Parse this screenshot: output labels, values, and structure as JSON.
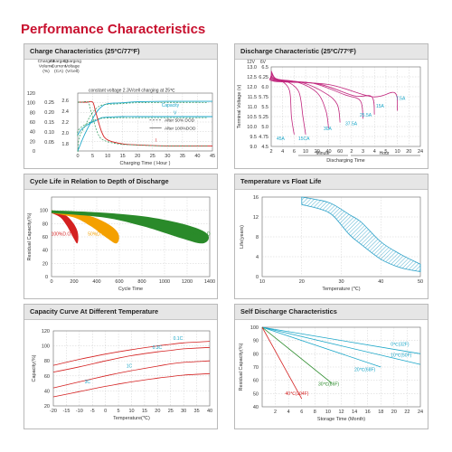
{
  "page": {
    "title": "Performance Characteristics"
  },
  "colors": {
    "title_red": "#c8102e",
    "magenta": "#c0247c",
    "cyan": "#1aa6c8",
    "red": "#d42020",
    "green": "#2a8a2a",
    "orange": "#f4a000",
    "hatch": "#2aa0c8"
  },
  "chart_data": [
    {
      "id": "charge",
      "type": "line",
      "title": "Charge Characteristics (25ºC/77ºF)",
      "xlabel": "Charging Time ( Hour )",
      "header_labels": [
        "Charged Volume (%)",
        "Charging Current (CA)",
        "Charging Voltage (V/cell)"
      ],
      "x_ticks": [
        "0",
        "5",
        "10",
        "15",
        "20",
        "25",
        "30",
        "35",
        "40",
        "45"
      ],
      "y_ticks_volume": [
        "0",
        "20",
        "40",
        "60",
        "80",
        "100",
        "120"
      ],
      "y_ticks_current": [
        "0.05",
        "0.10",
        "0.15",
        "0.20",
        "0.25"
      ],
      "y_ticks_voltage": [
        "1.8",
        "2.0",
        "2.2",
        "2.4",
        "2.6"
      ],
      "annotation": "constant voltage 2.3V/cell charging at 25℃",
      "curve_labels": [
        "V",
        "Capacity",
        "I"
      ],
      "legend": [
        "After 50% DOD",
        "After 100%DOD"
      ],
      "xlim": [
        0,
        45
      ],
      "series": [
        {
          "name": "V",
          "x": [
            0,
            1,
            3,
            5,
            7,
            8,
            10,
            15,
            20,
            30,
            45
          ],
          "y": [
            1.96,
            2.05,
            2.14,
            2.2,
            2.25,
            2.28,
            2.29,
            2.3,
            2.3,
            2.3,
            2.3
          ]
        },
        {
          "name": "Capacity",
          "x": [
            0,
            2,
            4,
            6,
            8,
            10,
            15,
            20,
            30,
            45
          ],
          "y": [
            0,
            30,
            55,
            78,
            92,
            98,
            100,
            102,
            103,
            103
          ]
        },
        {
          "name": "I",
          "x": [
            0,
            3,
            5,
            6,
            8,
            10,
            15,
            20,
            30,
            45
          ],
          "y": [
            0.25,
            0.25,
            0.25,
            0.2,
            0.1,
            0.06,
            0.04,
            0.035,
            0.03,
            0.03
          ]
        }
      ]
    },
    {
      "id": "discharge",
      "type": "line",
      "title": "Discharge Characteristic (25ºC/77ºF)",
      "ylabel": "Terminal Voltage (v)",
      "xlabel": "Discharging Time",
      "x_unit_labels": [
        "Minute",
        "Hour"
      ],
      "x_ticks": [
        "2",
        "4",
        "6",
        "10",
        "20",
        "40",
        "60",
        "2",
        "3",
        "4",
        "5",
        "10",
        "20",
        "24"
      ],
      "y_ticks_12v": [
        "9.0",
        "9.5",
        "10.0",
        "10.5",
        "11.0",
        "11.5",
        "12.0",
        "12.5",
        "13.0"
      ],
      "y_ticks_6v": [
        "4.5",
        "4.75",
        "5.0",
        "5.25",
        "5.5",
        "5.75",
        "6.0",
        "6.25",
        "6.5"
      ],
      "y_header": [
        "12V",
        "6V"
      ],
      "series": [
        {
          "name": "45A",
          "color": "#1aa6c8",
          "end_time": "6 min",
          "end_voltage_12v": 9.6
        },
        {
          "name": "15CA",
          "color": "#1aa6c8",
          "end_time": "10 min",
          "end_voltage_12v": 9.6
        },
        {
          "name": "30A",
          "color": "#1aa6c8",
          "end_time": "40 min",
          "end_voltage_12v": 9.9
        },
        {
          "name": "37.5A",
          "color": "#1aa6c8",
          "end_time": "2 h",
          "end_voltage_12v": 10.2
        },
        {
          "name": "25.5A",
          "color": "#1aa6c8",
          "end_time": "4 h",
          "end_voltage_12v": 10.4
        },
        {
          "name": "15A",
          "color": "#1aa6c8",
          "end_time": "10 h",
          "end_voltage_12v": 10.6
        },
        {
          "name": "7.5A",
          "color": "#1aa6c8",
          "end_time": "20 h",
          "end_voltage_12v": 10.8
        }
      ]
    },
    {
      "id": "cycle-life",
      "type": "area",
      "title": "Cycle Life in Relation to Depth of Discharge",
      "ylabel": "Residual Capacity(%)",
      "xlabel": "Cycle Time",
      "x_ticks": [
        "0",
        "200",
        "400",
        "600",
        "800",
        "1000",
        "1200",
        "1400"
      ],
      "y_ticks": [
        "0",
        "20",
        "40",
        "60",
        "80",
        "100"
      ],
      "xlim": [
        0,
        1400
      ],
      "ylim": [
        0,
        120
      ],
      "series": [
        {
          "name": "100%D.O.D",
          "color": "#d42020",
          "end_cycles": 230
        },
        {
          "name": "50%D.O.D",
          "color": "#f4a000",
          "end_cycles": 580
        },
        {
          "name": "30%D.O.D",
          "color": "#2a8a2a",
          "end_cycles": 1350
        }
      ]
    },
    {
      "id": "float-life",
      "type": "area",
      "title": "Temperature vs Float Life",
      "ylabel": "Life(years)",
      "xlabel": "Temperature (℃)",
      "x_ticks": [
        "10",
        "20",
        "30",
        "40",
        "50"
      ],
      "y_ticks": [
        "0",
        "4",
        "8",
        "12",
        "16"
      ],
      "xlim": [
        10,
        50
      ],
      "ylim": [
        0,
        16
      ],
      "band_upper": {
        "x": [
          20,
          25,
          28,
          32,
          35,
          40,
          45,
          50
        ],
        "y": [
          16,
          15.3,
          14.5,
          12.5,
          11,
          7,
          4.5,
          2.5
        ]
      },
      "band_lower": {
        "x": [
          20,
          25,
          28,
          32,
          35,
          40,
          45,
          50
        ],
        "y": [
          14.5,
          13.5,
          12.2,
          8.5,
          6.5,
          3.5,
          1.8,
          1.0
        ]
      }
    },
    {
      "id": "capacity-temp",
      "type": "line",
      "title": "Capacity Curve At Different Temperature",
      "ylabel": "Capacity(%)",
      "xlabel": "Temperature(℃)",
      "x_ticks": [
        "-20",
        "-15",
        "-10",
        "-5",
        "0",
        "5",
        "10",
        "15",
        "20",
        "25",
        "30",
        "35",
        "40"
      ],
      "y_ticks": [
        "20",
        "40",
        "60",
        "80",
        "100",
        "120"
      ],
      "xlim": [
        -20,
        40
      ],
      "ylim": [
        20,
        120
      ],
      "series": [
        {
          "name": "0.1C",
          "x": [
            -20,
            -10,
            0,
            10,
            20,
            25,
            30,
            40
          ],
          "y": [
            74,
            82,
            89,
            95,
            100,
            102,
            104,
            106
          ]
        },
        {
          "name": "0.3C",
          "x": [
            -20,
            -10,
            0,
            10,
            20,
            25,
            30,
            40
          ],
          "y": [
            65,
            72,
            80,
            87,
            92,
            94,
            96,
            98
          ]
        },
        {
          "name": "1C",
          "x": [
            -20,
            -10,
            0,
            10,
            20,
            25,
            30,
            40
          ],
          "y": [
            44,
            52,
            60,
            67,
            73,
            76,
            78,
            80
          ]
        },
        {
          "name": "3C",
          "x": [
            -20,
            -10,
            0,
            10,
            20,
            25,
            30,
            40
          ],
          "y": [
            32,
            39,
            46,
            52,
            57,
            59,
            61,
            63
          ]
        }
      ]
    },
    {
      "id": "self-discharge",
      "type": "line",
      "title": "Self Discharge Characteristics",
      "ylabel": "Residual Capacity(%)",
      "xlabel": "Storage Time (Month)",
      "x_ticks": [
        "2",
        "4",
        "6",
        "8",
        "10",
        "12",
        "14",
        "16",
        "18",
        "20",
        "22",
        "24"
      ],
      "y_ticks": [
        "40",
        "50",
        "60",
        "70",
        "80",
        "90",
        "100"
      ],
      "xlim": [
        0,
        24
      ],
      "ylim": [
        40,
        100
      ],
      "series": [
        {
          "name": "0℃(32F)",
          "color": "#1aa6c8",
          "x": [
            0,
            24
          ],
          "y": [
            100,
            80
          ]
        },
        {
          "name": "10℃(50F)",
          "color": "#1aa6c8",
          "x": [
            0,
            24
          ],
          "y": [
            100,
            72
          ]
        },
        {
          "name": "20℃(68F)",
          "color": "#1aa6c8",
          "x": [
            0,
            18
          ],
          "y": [
            100,
            70
          ]
        },
        {
          "name": "30℃(86F)",
          "color": "#2a8a2a",
          "x": [
            0,
            10.5
          ],
          "y": [
            100,
            58
          ]
        },
        {
          "name": "40℃(104F)",
          "color": "#d42020",
          "x": [
            0,
            6
          ],
          "y": [
            100,
            46
          ]
        }
      ]
    }
  ]
}
